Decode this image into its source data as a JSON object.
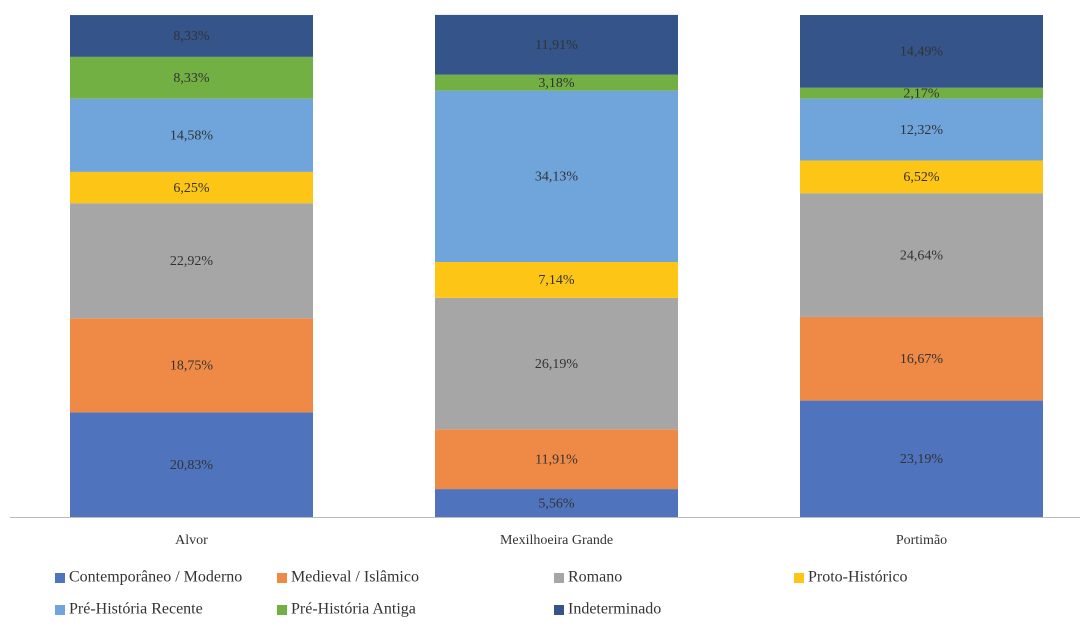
{
  "chart_data": {
    "type": "stacked_bar",
    "categories": [
      "Alvor",
      "Mexilhoeira Grande",
      "Portimão"
    ],
    "ylim": [
      0,
      100
    ],
    "legend": "bottom",
    "series": [
      {
        "name": "Contemporâneo / Moderno",
        "color": "#4f74bd",
        "values": [
          20.83,
          5.56,
          23.19
        ],
        "value_labels": [
          "20,83%",
          "5,56%",
          "23,19%"
        ]
      },
      {
        "name": "Medieval / Islâmico",
        "color": "#ee8a45",
        "values": [
          18.75,
          11.91,
          16.67
        ],
        "value_labels": [
          "18,75%",
          "11,91%",
          "16,67%"
        ]
      },
      {
        "name": "Romano",
        "color": "#a6a6a6",
        "values": [
          22.92,
          26.19,
          24.64
        ],
        "value_labels": [
          "22,92%",
          "26,19%",
          "24,64%"
        ]
      },
      {
        "name": "Proto-Histórico",
        "color": "#fdc516",
        "values": [
          6.25,
          7.14,
          6.52
        ],
        "value_labels": [
          "6,25%",
          "7,14%",
          "6,52%"
        ]
      },
      {
        "name": "Pré-História Recente",
        "color": "#6fa5db",
        "values": [
          14.58,
          34.13,
          12.32
        ],
        "value_labels": [
          "14,58%",
          "34,13%",
          "12,32%"
        ]
      },
      {
        "name": "Pré-História Antiga",
        "color": "#72b043",
        "values": [
          8.33,
          3.18,
          2.17
        ],
        "value_labels": [
          "8,33%",
          "3,18%",
          "2,17%"
        ]
      },
      {
        "name": "Indeterminado",
        "color": "#34548a",
        "values": [
          8.33,
          11.91,
          14.49
        ],
        "value_labels": [
          "8,33%",
          "11,91%",
          "14,49%"
        ]
      }
    ]
  }
}
